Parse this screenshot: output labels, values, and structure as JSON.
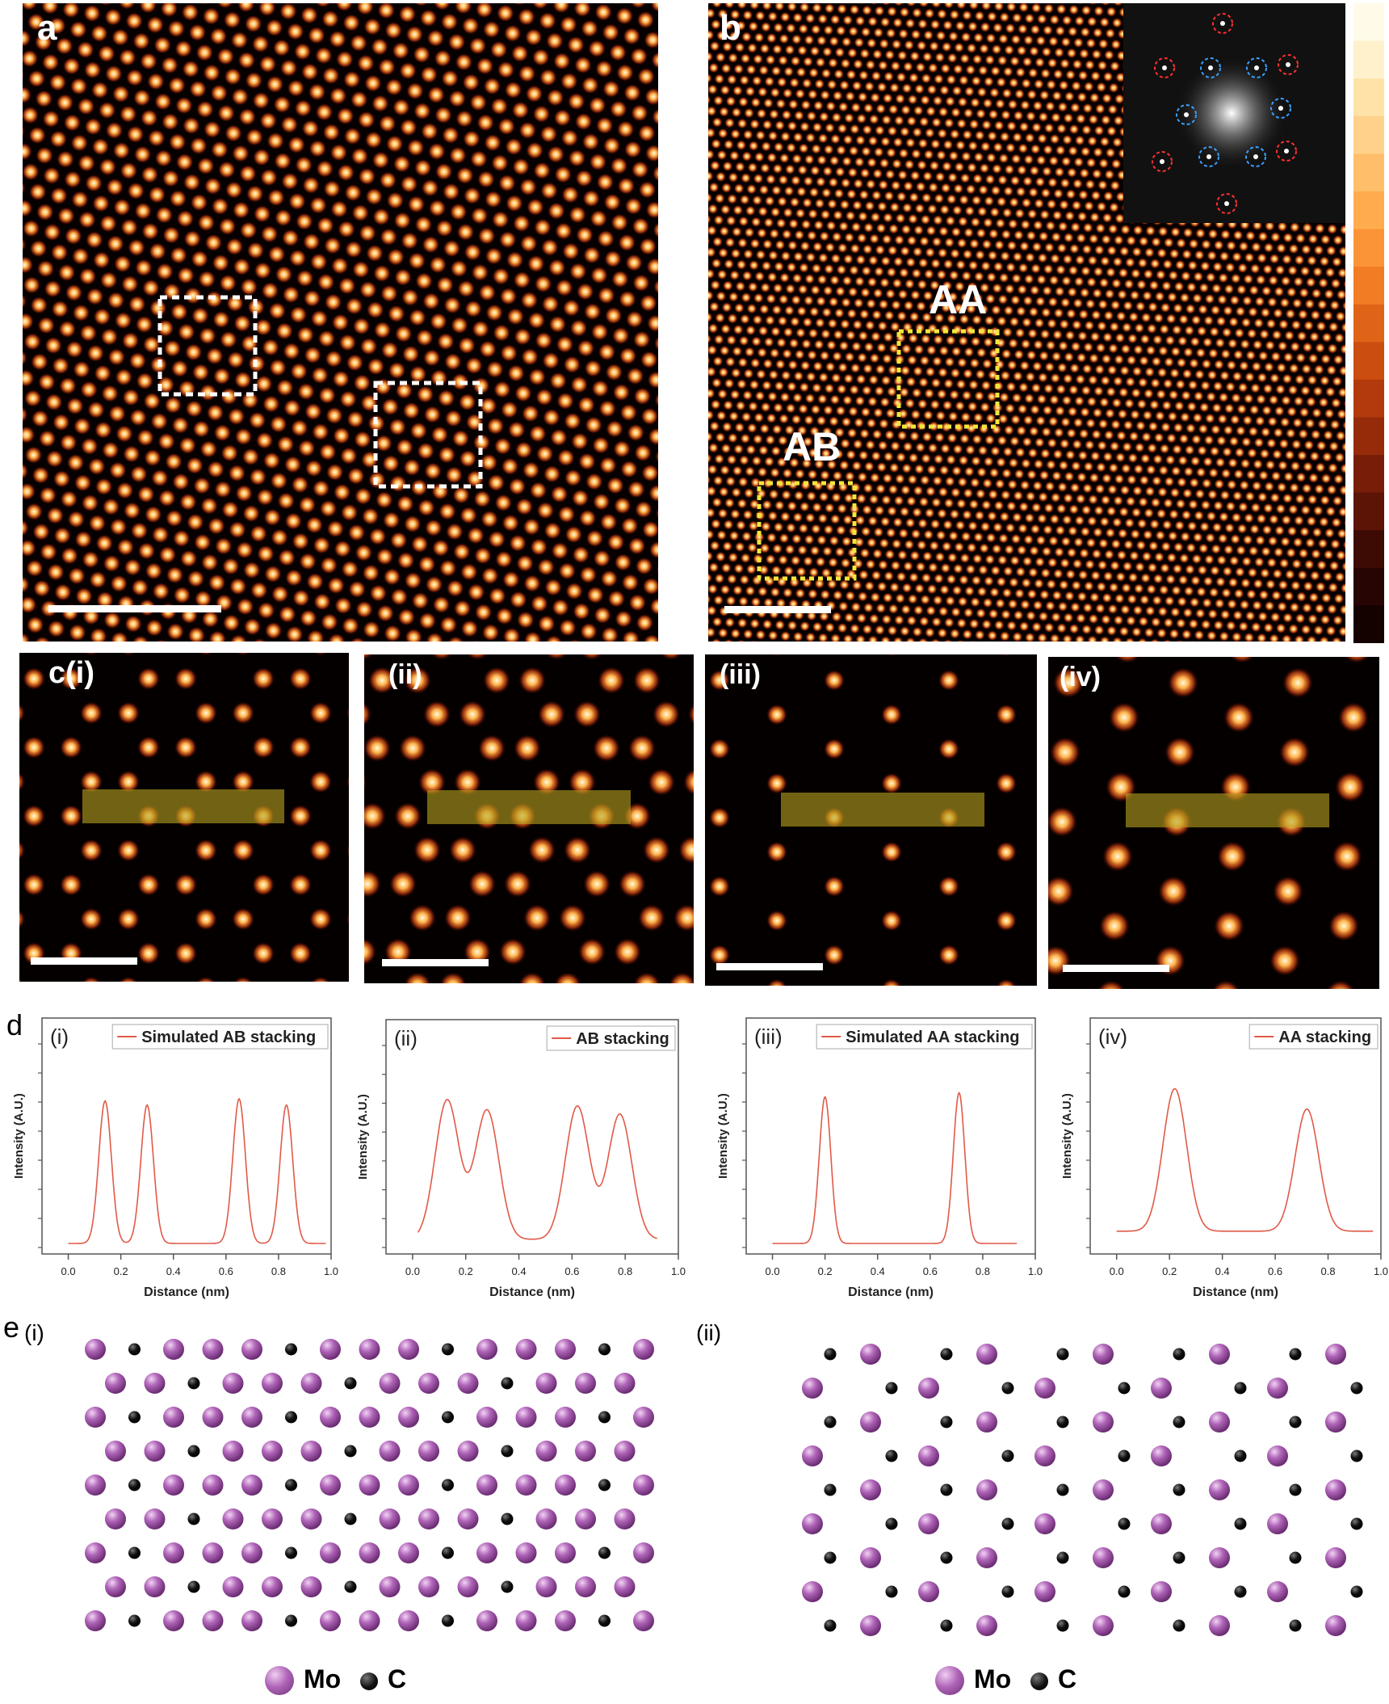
{
  "figure": {
    "panel_a": {
      "label": "a"
    },
    "panel_b": {
      "label": "b",
      "region_aa": "AA",
      "region_ab": "AB"
    },
    "panel_c": {
      "labels": [
        "c(i)",
        "(ii)",
        "(iii)",
        "(iv)"
      ]
    },
    "panel_d": {
      "label": "d"
    },
    "panel_e": {
      "label": "e",
      "sub_i": "(i)",
      "sub_ii": "(ii)",
      "legend": {
        "mo": "Mo",
        "c": "C"
      }
    }
  },
  "colors": {
    "atom_mo": "#b065b8",
    "atom_c": "#111111",
    "line_profile": "#e05a48",
    "highlight": "#b4a01e",
    "box_yellow": "#f2e63a",
    "box_white": "#ffffff"
  },
  "chart_data": [
    {
      "type": "line",
      "panel": "(i)",
      "title": "",
      "legend": "Simulated AB stacking",
      "xlabel": "Distance (nm)",
      "ylabel": "Intensity (A.U.)",
      "xlim": [
        -0.1,
        1.0
      ],
      "xticks": [
        "0.0",
        "0.2",
        "0.4",
        "0.6",
        "0.8",
        "1.0"
      ],
      "peaks": [
        {
          "x": 0.14,
          "height": 0.72
        },
        {
          "x": 0.3,
          "height": 0.7
        },
        {
          "x": 0.65,
          "height": 0.73
        },
        {
          "x": 0.83,
          "height": 0.7
        }
      ],
      "peak_width_nm": 0.024,
      "baseline": 0.02,
      "x_range": [
        0.0,
        0.98
      ]
    },
    {
      "type": "line",
      "panel": "(ii)",
      "title": "",
      "legend": "AB stacking",
      "xlabel": "Distance (nm)",
      "ylabel": "Intensity (A.U.)",
      "xlim": [
        -0.1,
        1.0
      ],
      "xticks": [
        "0.0",
        "0.2",
        "0.4",
        "0.6",
        "0.8",
        "1.0"
      ],
      "peaks": [
        {
          "x": 0.13,
          "height": 0.73
        },
        {
          "x": 0.28,
          "height": 0.68
        },
        {
          "x": 0.62,
          "height": 0.7
        },
        {
          "x": 0.78,
          "height": 0.66
        }
      ],
      "peak_width_nm": 0.045,
      "baseline": 0.04,
      "x_range": [
        0.02,
        0.92
      ]
    },
    {
      "type": "line",
      "panel": "(iii)",
      "title": "",
      "legend": "Simulated AA stacking",
      "xlabel": "Distance (nm)",
      "ylabel": "Intensity (A.U.)",
      "xlim": [
        -0.1,
        1.0
      ],
      "xticks": [
        "0.0",
        "0.2",
        "0.4",
        "0.6",
        "0.8",
        "1.0"
      ],
      "peaks": [
        {
          "x": 0.2,
          "height": 0.74
        },
        {
          "x": 0.71,
          "height": 0.76
        }
      ],
      "peak_width_nm": 0.022,
      "baseline": 0.02,
      "x_range": [
        0.0,
        0.93
      ]
    },
    {
      "type": "line",
      "panel": "(iv)",
      "title": "",
      "legend": "AA stacking",
      "xlabel": "Distance (nm)",
      "ylabel": "Intensity (A.U.)",
      "xlim": [
        -0.1,
        1.0
      ],
      "xticks": [
        "0.0",
        "0.2",
        "0.4",
        "0.6",
        "0.8",
        "1.0"
      ],
      "peaks": [
        {
          "x": 0.22,
          "height": 0.78
        },
        {
          "x": 0.72,
          "height": 0.68
        }
      ],
      "peak_width_nm": 0.045,
      "baseline": 0.08,
      "x_range": [
        0.0,
        0.97
      ]
    }
  ]
}
